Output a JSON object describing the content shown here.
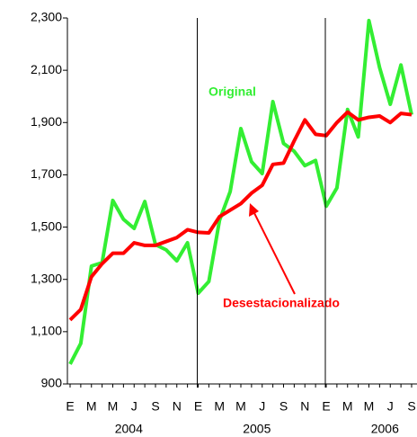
{
  "chart_data": {
    "type": "line",
    "categories": [
      "E",
      null,
      "M",
      null,
      "M",
      null,
      "J",
      null,
      "S",
      null,
      "N",
      null,
      "E",
      null,
      "M",
      null,
      "M",
      null,
      "J",
      null,
      "S",
      null,
      "N",
      null,
      "E",
      null,
      "M",
      null,
      "M",
      null,
      "J",
      null,
      "S"
    ],
    "years": [
      "2004",
      "2005",
      "2006"
    ],
    "series": [
      {
        "name": "Original",
        "color": "#33ee33",
        "values": [
          976,
          1055,
          1351,
          1364,
          1602,
          1530,
          1495,
          1598,
          1433,
          1413,
          1371,
          1440,
          1247,
          1292,
          1526,
          1636,
          1877,
          1750,
          1705,
          1980,
          1820,
          1790,
          1735,
          1755,
          1580,
          1650,
          1950,
          1845,
          2290,
          2110,
          1970,
          2120,
          1930
        ]
      },
      {
        "name": "Desestacionalizado",
        "color": "#ff0000",
        "values": [
          1145,
          1185,
          1310,
          1360,
          1400,
          1400,
          1440,
          1430,
          1430,
          1445,
          1460,
          1490,
          1480,
          1478,
          1540,
          1565,
          1590,
          1630,
          1660,
          1740,
          1745,
          1830,
          1910,
          1855,
          1850,
          1900,
          1940,
          1910,
          1920,
          1925,
          1900,
          1935,
          1930
        ]
      }
    ],
    "ylim": [
      900,
      2300
    ],
    "yticks": [
      900,
      {
        "value": 1100,
        "label": "1,100"
      },
      {
        "value": 1300,
        "label": "1,300"
      },
      {
        "value": 1500,
        "label": "1,500"
      },
      {
        "value": 1700,
        "label": "1,700"
      },
      {
        "value": 1900,
        "label": "1,900"
      },
      {
        "value": 2100,
        "label": "2,100"
      },
      {
        "value": 2300,
        "label": "2,300"
      }
    ]
  }
}
